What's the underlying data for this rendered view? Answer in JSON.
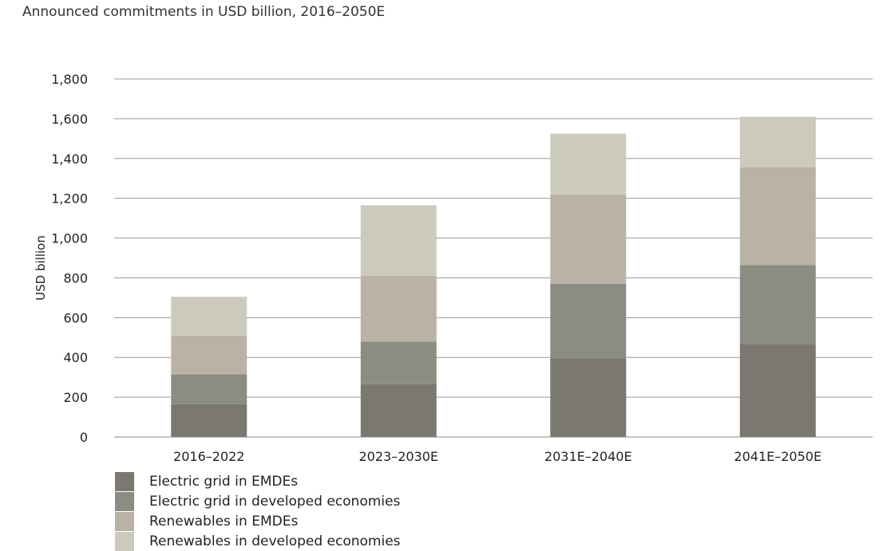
{
  "subtitle": "Announced commitments in USD billion, 2016–2050E",
  "chart_data": {
    "type": "bar",
    "stacked": true,
    "title": "",
    "subtitle": "Announced commitments in USD billion, 2016–2050E",
    "xlabel": "",
    "ylabel": "USD billion",
    "ylim": [
      0,
      1800
    ],
    "yticks": [
      0,
      200,
      400,
      600,
      800,
      1000,
      1200,
      1400,
      1600,
      1800
    ],
    "ytick_labels": [
      "0",
      "200",
      "400",
      "600",
      "800",
      "1,000",
      "1,200",
      "1,400",
      "1,600",
      "1,800"
    ],
    "grid": true,
    "legend_position": "bottom-left",
    "categories": [
      "2016–2022",
      "2023–2030E",
      "2031E–2040E",
      "2041E–2050E"
    ],
    "series": [
      {
        "name": "Electric grid in EMDEs",
        "color": "#7a7870",
        "values": [
          165,
          265,
          395,
          465
        ]
      },
      {
        "name": "Electric grid in developed economies",
        "color": "#8c8d82",
        "values": [
          150,
          215,
          375,
          400
        ]
      },
      {
        "name": "Renewables in EMDEs",
        "color": "#bab3a5",
        "values": [
          195,
          330,
          450,
          490
        ]
      },
      {
        "name": "Renewables in developed economies",
        "color": "#cbcabd",
        "values": [
          195,
          355,
          305,
          255
        ]
      }
    ]
  }
}
